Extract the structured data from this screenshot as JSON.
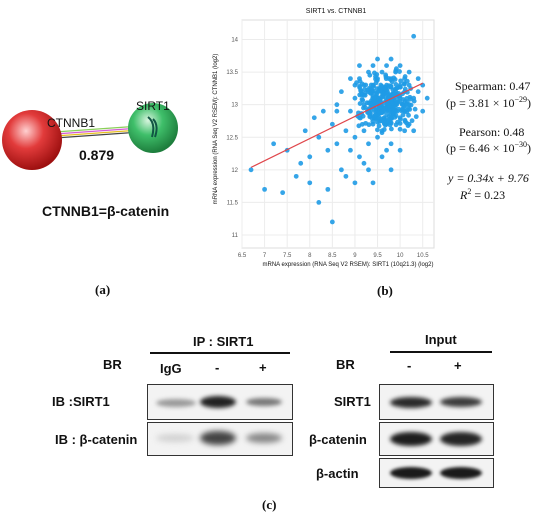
{
  "network": {
    "node_a": "CTNNB1",
    "node_b": "SIRT1",
    "score": "0.879",
    "caption": "CTNNB1=β-catenin"
  },
  "panel_labels": {
    "a": "(a)",
    "b": "(b)",
    "c": "(c)"
  },
  "chart_data": {
    "type": "scatter",
    "title": "SIRT1 vs. CTNNB1",
    "xlabel": "mRNA expression (RNA Seq V2 RSEM): SIRT1 (10q21.3) (log2)",
    "ylabel": "mRNA expression (RNA Seq V2 RSEM): CTNNB1 (log2)",
    "xlim": [
      6.5,
      10.75
    ],
    "ylim": [
      10.8,
      14.3
    ],
    "x_ticks": [
      "6.5",
      "7",
      "7.5",
      "8",
      "8.5",
      "9",
      "9.5",
      "10",
      "10.5"
    ],
    "y_ticks": [
      "11",
      "11.5",
      "12",
      "12.5",
      "13",
      "13.5",
      "14"
    ],
    "grid": true,
    "point_color": "#1f9be6",
    "line_color": "#e0474c",
    "regression": {
      "slope": 0.34,
      "intercept": 9.76,
      "x_range": [
        6.7,
        10.5
      ]
    },
    "points": [
      [
        6.7,
        12.0
      ],
      [
        7.0,
        11.7
      ],
      [
        7.2,
        12.4
      ],
      [
        7.4,
        11.65
      ],
      [
        7.5,
        12.3
      ],
      [
        7.7,
        11.9
      ],
      [
        7.8,
        12.1
      ],
      [
        7.9,
        12.6
      ],
      [
        8.0,
        12.2
      ],
      [
        8.0,
        11.8
      ],
      [
        8.1,
        12.8
      ],
      [
        8.2,
        11.5
      ],
      [
        8.2,
        12.5
      ],
      [
        8.3,
        12.9
      ],
      [
        8.4,
        11.7
      ],
      [
        8.4,
        12.3
      ],
      [
        8.5,
        11.2
      ],
      [
        8.5,
        12.7
      ],
      [
        8.6,
        13.0
      ],
      [
        8.6,
        12.4
      ],
      [
        8.7,
        12.0
      ],
      [
        8.7,
        13.2
      ],
      [
        8.8,
        12.6
      ],
      [
        8.8,
        11.9
      ],
      [
        8.9,
        12.9
      ],
      [
        8.9,
        12.3
      ],
      [
        9.0,
        13.1
      ],
      [
        9.0,
        12.5
      ],
      [
        9.0,
        11.8
      ],
      [
        9.1,
        13.4
      ],
      [
        9.1,
        12.8
      ],
      [
        9.1,
        12.2
      ],
      [
        9.2,
        13.0
      ],
      [
        9.2,
        12.6
      ],
      [
        9.2,
        13.3
      ],
      [
        9.3,
        12.9
      ],
      [
        9.3,
        13.2
      ],
      [
        9.3,
        12.4
      ],
      [
        9.3,
        13.5
      ],
      [
        9.4,
        13.0
      ],
      [
        9.4,
        12.7
      ],
      [
        9.4,
        13.3
      ],
      [
        9.5,
        13.1
      ],
      [
        9.5,
        12.8
      ],
      [
        9.5,
        13.4
      ],
      [
        9.5,
        12.5
      ],
      [
        9.6,
        13.2
      ],
      [
        9.6,
        12.9
      ],
      [
        9.6,
        13.5
      ],
      [
        9.6,
        12.6
      ],
      [
        9.7,
        13.0
      ],
      [
        9.7,
        13.3
      ],
      [
        9.7,
        12.7
      ],
      [
        9.7,
        13.6
      ],
      [
        9.8,
        13.1
      ],
      [
        9.8,
        13.4
      ],
      [
        9.8,
        12.8
      ],
      [
        9.8,
        12.4
      ],
      [
        9.9,
        13.2
      ],
      [
        9.9,
        13.5
      ],
      [
        9.9,
        12.9
      ],
      [
        9.9,
        13.0
      ],
      [
        10.0,
        13.3
      ],
      [
        10.0,
        13.1
      ],
      [
        10.0,
        12.8
      ],
      [
        10.0,
        13.6
      ],
      [
        10.1,
        13.2
      ],
      [
        10.1,
        13.4
      ],
      [
        10.1,
        12.9
      ],
      [
        10.2,
        13.0
      ],
      [
        10.2,
        13.5
      ],
      [
        10.2,
        13.3
      ],
      [
        10.3,
        13.1
      ],
      [
        10.3,
        14.05
      ],
      [
        10.3,
        12.6
      ],
      [
        10.4,
        13.2
      ],
      [
        10.4,
        13.4
      ],
      [
        10.5,
        13.3
      ],
      [
        10.5,
        12.9
      ],
      [
        10.6,
        13.1
      ],
      [
        9.2,
        12.1
      ],
      [
        9.4,
        11.8
      ],
      [
        9.6,
        12.2
      ],
      [
        9.8,
        12.0
      ],
      [
        10.0,
        12.3
      ],
      [
        8.9,
        13.4
      ],
      [
        9.1,
        13.6
      ],
      [
        9.5,
        13.7
      ],
      [
        9.3,
        12.0
      ],
      [
        9.7,
        12.3
      ],
      [
        10.1,
        12.6
      ],
      [
        8.6,
        12.9
      ],
      [
        9.0,
        13.3
      ],
      [
        9.4,
        13.6
      ],
      [
        9.8,
        13.7
      ],
      [
        10.2,
        12.7
      ]
    ]
  },
  "stats": {
    "spearman_label": "Spearman: 0.47",
    "spearman_p": "(p = 3.81 × 10",
    "spearman_exp": "−29",
    "pearson_label": "Pearson: 0.48",
    "pearson_p": "(p = 6.46 × 10",
    "pearson_exp": "−30",
    "equation": "y = 0.34x + 9.76",
    "r2": "R",
    "r2_value": " = 0.23"
  },
  "ip_group": {
    "title": "IP : SIRT1",
    "br": "BR",
    "lanes": [
      "IgG",
      "-",
      "+"
    ],
    "row1": "IB :SIRT1",
    "row2": "IB : β-catenin"
  },
  "input_group": {
    "title": "Input",
    "br": "BR",
    "lanes": [
      "-",
      "+"
    ],
    "row1": "SIRT1",
    "row2": "β-catenin",
    "row3": "β-actin"
  }
}
